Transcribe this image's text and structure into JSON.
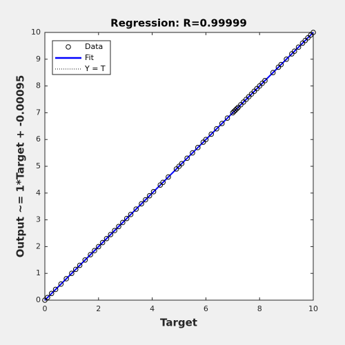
{
  "chart_data": {
    "type": "scatter",
    "title": "Regression: R=0.99999",
    "x_label": "Target",
    "y_label": "Output ~= 1*Target + -0.00095",
    "xlim": [
      0,
      10
    ],
    "ylim": [
      0,
      10
    ],
    "xticks": [
      0,
      2,
      4,
      6,
      8,
      10
    ],
    "yticks": [
      0,
      1,
      2,
      3,
      4,
      5,
      6,
      7,
      8,
      9,
      10
    ],
    "grid": false,
    "legend_position": "upper left",
    "series": [
      {
        "name": "Data",
        "color": "#000000",
        "style": "markers",
        "x": [
          0,
          0.1,
          0.25,
          0.4,
          0.6,
          0.8,
          1.0,
          1.15,
          1.3,
          1.5,
          1.7,
          1.85,
          2.0,
          2.15,
          2.3,
          2.45,
          2.6,
          2.75,
          2.9,
          3.05,
          3.2,
          3.4,
          3.6,
          3.75,
          3.9,
          4.05,
          4.3,
          4.4,
          4.6,
          4.9,
          5.0,
          5.1,
          5.3,
          5.5,
          5.7,
          5.9,
          6.0,
          6.2,
          6.4,
          6.6,
          6.8,
          7.0,
          7.05,
          7.1,
          7.15,
          7.2,
          7.3,
          7.4,
          7.5,
          7.6,
          7.7,
          7.8,
          7.9,
          8.0,
          8.1,
          8.2,
          8.5,
          8.7,
          8.8,
          9.0,
          9.2,
          9.3,
          9.45,
          9.6,
          9.7,
          9.8,
          9.9,
          10.0
        ],
        "values": [
          0,
          0.1,
          0.25,
          0.4,
          0.6,
          0.8,
          1.0,
          1.15,
          1.3,
          1.5,
          1.7,
          1.85,
          2.0,
          2.15,
          2.3,
          2.45,
          2.6,
          2.75,
          2.9,
          3.05,
          3.2,
          3.4,
          3.6,
          3.75,
          3.9,
          4.05,
          4.3,
          4.4,
          4.6,
          4.9,
          5.0,
          5.1,
          5.3,
          5.5,
          5.7,
          5.9,
          6.0,
          6.2,
          6.4,
          6.6,
          6.8,
          7.0,
          7.05,
          7.1,
          7.15,
          7.2,
          7.3,
          7.4,
          7.5,
          7.6,
          7.7,
          7.8,
          7.9,
          8.0,
          8.1,
          8.2,
          8.5,
          8.7,
          8.8,
          9.0,
          9.2,
          9.3,
          9.45,
          9.6,
          9.7,
          9.8,
          9.9,
          10.0
        ]
      },
      {
        "name": "Fit",
        "color": "#0000ff",
        "style": "line",
        "x": [
          0,
          10
        ],
        "values": [
          -0.00095,
          9.99905
        ]
      },
      {
        "name": "Y = T",
        "color": "#000000",
        "style": "dotted",
        "x": [
          0,
          10
        ],
        "values": [
          0,
          10
        ]
      }
    ]
  }
}
